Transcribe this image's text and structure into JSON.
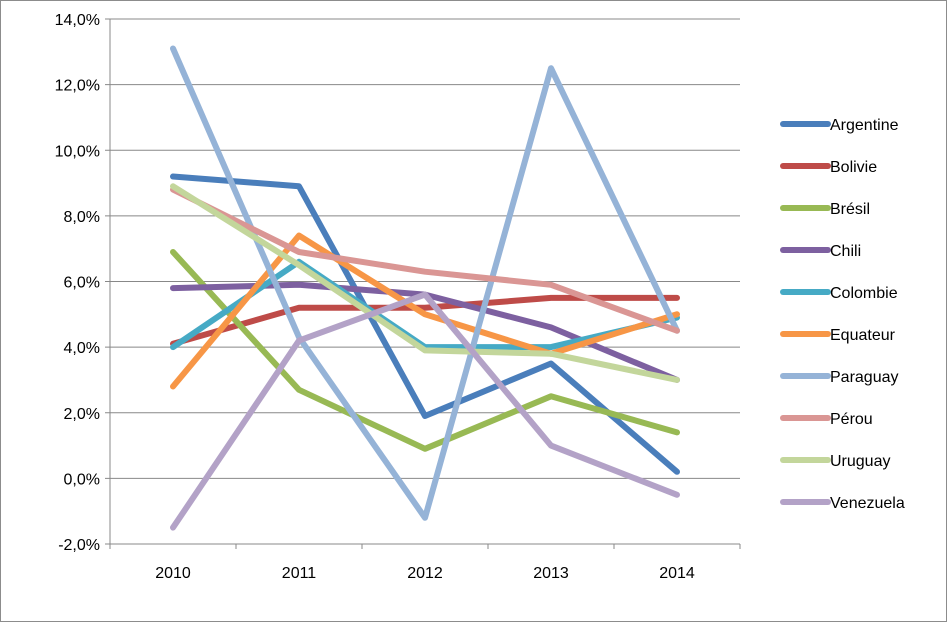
{
  "chart_data": {
    "type": "line",
    "title": "",
    "xlabel": "",
    "ylabel": "",
    "categories": [
      "2010",
      "2011",
      "2012",
      "2013",
      "2014"
    ],
    "ylim": [
      -2.0,
      14.0
    ],
    "yticks": [
      -2.0,
      0.0,
      2.0,
      4.0,
      6.0,
      8.0,
      10.0,
      12.0,
      14.0
    ],
    "ytick_labels": [
      "-2,0%",
      "0,0%",
      "2,0%",
      "4,0%",
      "6,0%",
      "8,0%",
      "10,0%",
      "12,0%",
      "14,0%"
    ],
    "grid": "horizontal",
    "legend_position": "right",
    "series": [
      {
        "name": "Argentine",
        "color": "#4a7ebb",
        "values": [
          9.2,
          8.9,
          1.9,
          3.5,
          0.2
        ]
      },
      {
        "name": "Bolivie",
        "color": "#be4b48",
        "values": [
          4.1,
          5.2,
          5.2,
          5.5,
          5.5
        ]
      },
      {
        "name": "Brésil",
        "color": "#98b954",
        "values": [
          6.9,
          2.7,
          0.9,
          2.5,
          1.4
        ]
      },
      {
        "name": "Chili",
        "color": "#7d60a0",
        "values": [
          5.8,
          5.9,
          5.6,
          4.6,
          3.0
        ]
      },
      {
        "name": "Colombie",
        "color": "#46aac5",
        "values": [
          4.0,
          6.6,
          4.0,
          4.0,
          4.9
        ]
      },
      {
        "name": "Equateur",
        "color": "#f79646",
        "values": [
          2.8,
          7.4,
          5.0,
          3.8,
          5.0
        ]
      },
      {
        "name": "Paraguay",
        "color": "#95b3d7",
        "values": [
          13.1,
          4.3,
          -1.2,
          12.5,
          4.5
        ]
      },
      {
        "name": "Pérou",
        "color": "#da9694",
        "values": [
          8.8,
          6.9,
          6.3,
          5.9,
          4.5
        ]
      },
      {
        "name": "Uruguay",
        "color": "#c3d69b",
        "values": [
          8.9,
          6.5,
          3.9,
          3.8,
          3.0
        ]
      },
      {
        "name": "Venezuela",
        "color": "#b3a2c7",
        "values": [
          -1.5,
          4.2,
          5.6,
          1.0,
          -0.5
        ]
      }
    ]
  }
}
